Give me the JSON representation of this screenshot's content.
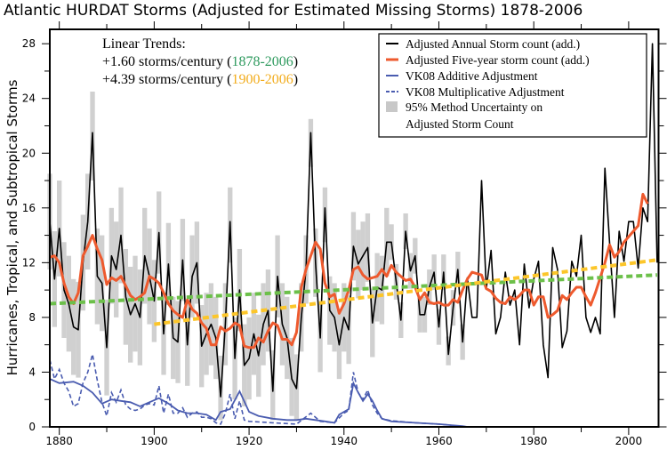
{
  "chart_data": {
    "type": "line",
    "title": "Atlantic HURDAT Storms (Adjusted for Estimated Missing Storms) 1878-2006",
    "xlabel": "",
    "ylabel": "Hurricanes, Tropical, and Subtropical Storms",
    "xlim": [
      1878,
      2006.3
    ],
    "ylim": [
      0,
      29.05
    ],
    "x_ticks": [
      1880,
      1900,
      1920,
      1940,
      1960,
      1980,
      2000
    ],
    "y_ticks": [
      0,
      4,
      8,
      12,
      16,
      20,
      24,
      28
    ],
    "grid": false,
    "legend_placement": "top-right",
    "trend_text": {
      "heading": "Linear Trends:",
      "lines": [
        {
          "prefix": "+1.60 storms/century (",
          "period": "1878-2006",
          "suffix": ")",
          "color": "#2e9a5e"
        },
        {
          "prefix": "+4.39 storms/century (",
          "period": "1900-2006",
          "suffix": ")",
          "color": "#f2ac1c"
        }
      ]
    },
    "legend": [
      {
        "label": "Adjusted Annual Storm count (add.)",
        "style": "solid",
        "color": "#000000"
      },
      {
        "label": "Adjusted Five-year storm count (add.)",
        "style": "solid-thick",
        "color": "#ee5a2e"
      },
      {
        "label": "VK08 Additive Adjustment",
        "style": "solid",
        "color": "#4a5cb0"
      },
      {
        "label": "VK08 Multiplicative Adjustment",
        "style": "dashed",
        "color": "#4a5cb0"
      },
      {
        "label": "95% Method Uncertainty on",
        "label2": "Adjusted Storm Count",
        "style": "box",
        "color": "#c8c8c8"
      }
    ],
    "annual_start_year": 1878,
    "annual": [
      15,
      10.8,
      14.5,
      10,
      9,
      7.3,
      7.1,
      12,
      15,
      21.5,
      11,
      10.5,
      5.8,
      12.5,
      11.5,
      14,
      9.5,
      8.2,
      9,
      8,
      12.5,
      11,
      9.2,
      14.2,
      6.8,
      11.9,
      6.5,
      6.2,
      12.2,
      6,
      11,
      12,
      5.9,
      6.8,
      7.5,
      6.5,
      2.2,
      7.5,
      15,
      5,
      10,
      4.5,
      5,
      6.8,
      5.2,
      7.5,
      8.5,
      2.6,
      11,
      7.5,
      6.5,
      3.5,
      2.8,
      8,
      11.5,
      21.5,
      12,
      6.5,
      16,
      8.5,
      8,
      6,
      8,
      7.1,
      13.2,
      11.9,
      12.5,
      13.1,
      7.6,
      10.2,
      10,
      13.5,
      13.5,
      10.6,
      7.8,
      14.3,
      11.4,
      12.5,
      8.2,
      8.2,
      10.2,
      11.3,
      7.3,
      11.3,
      5.3,
      8.7,
      11.5,
      6.2,
      10.9,
      8,
      8,
      18,
      10.1,
      12.9,
      6.8,
      8,
      11.3,
      8.9,
      10,
      6,
      11.9,
      8.7,
      10.8,
      12.1,
      6,
      3.6,
      13.1,
      11.5,
      5.8,
      7,
      12.1,
      11,
      14,
      8,
      6.9,
      8,
      6.8,
      18.9,
      13.4,
      8,
      14.3,
      12.1,
      15,
      15,
      11.6,
      16,
      15,
      28,
      12
    ],
    "five_year_start_year": 1878,
    "five_year": [
      12.4,
      12.5,
      12,
      10.5,
      9.5,
      9,
      9.8,
      12.5,
      13.2,
      14,
      13,
      12.2,
      10.4,
      10.9,
      10.7,
      11,
      10.3,
      9.6,
      9.3,
      9.5,
      9.8,
      11,
      10.8,
      10.5,
      9.8,
      9,
      8.5,
      8.2,
      8,
      9.3,
      8.6,
      8.3,
      7.6,
      7.2,
      6,
      6,
      7.3,
      7,
      7.2,
      7.6,
      7.4,
      5.9,
      5.8,
      5.8,
      6.5,
      6.2,
      7,
      7.6,
      7.4,
      6.4,
      6.4,
      6,
      6.9,
      10.2,
      11.5,
      12.5,
      13.5,
      13,
      10.5,
      9.5,
      9.7,
      8.3,
      9,
      10,
      11.5,
      11.7,
      11.1,
      10.8,
      10.9,
      11,
      11.5,
      11,
      11.8,
      11.3,
      11,
      10.7,
      10.8,
      10.2,
      9.3,
      9.8,
      9.1,
      9,
      9.1,
      8.9,
      8.9,
      9.3,
      9.1,
      10,
      10.8,
      11.3,
      11.2,
      11.1,
      10.1,
      9.9,
      9.4,
      9.1,
      9,
      9.5,
      9.3,
      9.6,
      10,
      10,
      8.9,
      9.5,
      9.5,
      8,
      8.2,
      8.5,
      9.6,
      9.3,
      9.8,
      10.2,
      10.2,
      9.5,
      8.9,
      9.8,
      10.9,
      12,
      13.3,
      12.4,
      12.8,
      13.5,
      13.9,
      14.3,
      14.7,
      17,
      16.3
    ],
    "uncertainty_start_year": 1878,
    "uncertainty_95": [
      [
        11.5,
        18.5
      ],
      [
        7.3,
        14.3
      ],
      [
        11,
        18
      ],
      [
        6.5,
        13.5
      ],
      [
        5.5,
        12.5
      ],
      [
        3.8,
        10.8
      ],
      [
        3.6,
        10.6
      ],
      [
        8.5,
        15.5
      ],
      [
        11.5,
        18.5
      ],
      [
        18,
        24.5
      ],
      [
        7.5,
        14.5
      ],
      [
        7,
        14
      ],
      [
        2.3,
        9.3
      ],
      [
        9,
        16
      ],
      [
        8,
        15
      ],
      [
        10.5,
        17.5
      ],
      [
        6,
        13
      ],
      [
        4.7,
        11.7
      ],
      [
        5.5,
        12.5
      ],
      [
        4.5,
        11.5
      ],
      [
        9,
        16
      ],
      [
        7.5,
        14.5
      ],
      [
        6.2,
        12.2
      ],
      [
        11.2,
        17.2
      ],
      [
        3.8,
        9.8
      ],
      [
        8.9,
        14.9
      ],
      [
        3.5,
        9.5
      ],
      [
        3.2,
        9.2
      ],
      [
        9.2,
        15.2
      ],
      [
        3,
        9
      ],
      [
        8,
        14
      ],
      [
        9,
        15
      ],
      [
        2.9,
        8.9
      ],
      [
        3.8,
        9.8
      ],
      [
        4.5,
        10.5
      ],
      [
        3.5,
        9.5
      ],
      [
        0.5,
        5.2
      ],
      [
        4.5,
        10.5
      ],
      [
        12,
        17.5
      ],
      [
        2,
        8
      ],
      [
        7,
        13
      ],
      [
        1.5,
        7.5
      ],
      [
        2,
        8
      ],
      [
        3.8,
        9.8
      ],
      [
        2.2,
        8.2
      ],
      [
        4.5,
        10.5
      ],
      [
        5.5,
        11.5
      ],
      [
        0.5,
        5.6
      ],
      [
        8,
        14
      ],
      [
        4.5,
        10.5
      ],
      [
        3.5,
        9.5
      ],
      [
        0.8,
        6.5
      ],
      [
        0.5,
        5.3
      ],
      [
        5.5,
        10.5
      ],
      [
        9,
        14
      ],
      [
        19,
        22.5
      ],
      [
        9.5,
        14.5
      ],
      [
        4,
        9
      ],
      [
        13.5,
        17.5
      ],
      [
        6,
        11
      ],
      [
        5.5,
        10.5
      ],
      [
        3.5,
        8.5
      ],
      [
        5.5,
        10.5
      ],
      [
        4.6,
        9.6
      ],
      [
        10.7,
        15.7
      ],
      [
        9.4,
        14.4
      ],
      [
        10,
        15
      ],
      [
        10.6,
        15.6
      ],
      [
        5.1,
        10.1
      ],
      [
        7.7,
        12.7
      ],
      [
        7.5,
        12.5
      ],
      [
        11,
        16
      ],
      [
        12.2,
        14.8
      ],
      [
        9.3,
        11.9
      ],
      [
        6.5,
        9.1
      ],
      [
        13,
        15.6
      ],
      [
        10.1,
        12.7
      ],
      [
        11.2,
        13.8
      ],
      [
        6.9,
        9.5
      ],
      [
        6.9,
        9.5
      ],
      [
        8.9,
        11.5
      ],
      [
        10,
        12.6
      ],
      [
        6,
        8.6
      ],
      [
        10,
        12.6
      ],
      [
        4.5,
        6.6
      ],
      [
        7.4,
        10
      ],
      [
        10.2,
        12.8
      ],
      [
        4.9,
        7.5
      ]
    ],
    "vk08_additive": {
      "x": [
        1878,
        1880,
        1883,
        1885,
        1887,
        1889,
        1891,
        1893,
        1895,
        1897,
        1899,
        1901,
        1903,
        1905,
        1907,
        1909,
        1911,
        1913,
        1914,
        1916,
        1918,
        1920,
        1922,
        1925,
        1928,
        1930,
        1932,
        1934,
        1936,
        1938,
        1939,
        1941,
        1942,
        1943,
        1944,
        1945,
        1946,
        1947,
        1948,
        1950,
        1955,
        1960,
        1965,
        1966,
        2006
      ],
      "y": [
        3.5,
        3.2,
        3.3,
        3.0,
        2.5,
        1.7,
        2.0,
        1.9,
        1.8,
        1.5,
        1.8,
        2.1,
        1.7,
        1.2,
        1.0,
        1.0,
        0.9,
        0.5,
        1.1,
        1.3,
        2.6,
        1.1,
        0.8,
        0.6,
        0.5,
        0.5,
        0.6,
        0.5,
        0.4,
        0.3,
        0.9,
        1.3,
        3.2,
        2.5,
        1.9,
        2.4,
        1.9,
        1.2,
        0.6,
        0.4,
        0.3,
        0.2,
        0.05,
        0,
        0
      ]
    },
    "vk08_multiplicative": {
      "x": [
        1878,
        1879,
        1880,
        1881,
        1882,
        1883,
        1884,
        1885,
        1886,
        1887,
        1888,
        1889,
        1890,
        1891,
        1892,
        1893,
        1894,
        1895,
        1896,
        1897,
        1898,
        1899,
        1900,
        1901,
        1902,
        1903,
        1904,
        1905,
        1906,
        1907,
        1908,
        1909,
        1910,
        1911,
        1912,
        1913,
        1914,
        1915,
        1916,
        1917,
        1918,
        1919,
        1920,
        1925,
        1930,
        1933,
        1935,
        1938,
        1940,
        1941,
        1942,
        1943,
        1944,
        1945,
        1946,
        1947,
        1948,
        1950,
        1955,
        1960,
        1966,
        2006
      ],
      "y": [
        4.9,
        3.5,
        4.2,
        3.2,
        2.6,
        1.5,
        1.7,
        3.2,
        4.0,
        5.3,
        3.4,
        1.8,
        0.8,
        2.5,
        1.8,
        2.7,
        1.6,
        1.3,
        1.2,
        1.3,
        1.6,
        1.7,
        1.6,
        3.0,
        1.0,
        2.4,
        1.0,
        1.0,
        1.4,
        0.7,
        1.0,
        1.1,
        0.7,
        0.7,
        0.6,
        0.3,
        0.2,
        1.0,
        2.4,
        0.6,
        1.9,
        0.5,
        0.4,
        0.3,
        0.2,
        1.0,
        0.4,
        0.3,
        1.0,
        1.2,
        4.0,
        2.5,
        2.0,
        2.7,
        1.6,
        1.0,
        0.6,
        0.45,
        0.3,
        0.2,
        0,
        0
      ]
    },
    "trend_1878_2006": {
      "x": [
        1878,
        2006
      ],
      "y": [
        9.0,
        11.1
      ],
      "color": "#6cc04a"
    },
    "trend_1900_2006": {
      "x": [
        1900,
        2006
      ],
      "y": [
        7.5,
        12.2
      ],
      "color": "#fcc62a"
    },
    "colors": {
      "annual": "#000000",
      "five_year": "#ee5a2e",
      "vk08": "#4a5cb0",
      "band": "#d0d0d0"
    }
  }
}
